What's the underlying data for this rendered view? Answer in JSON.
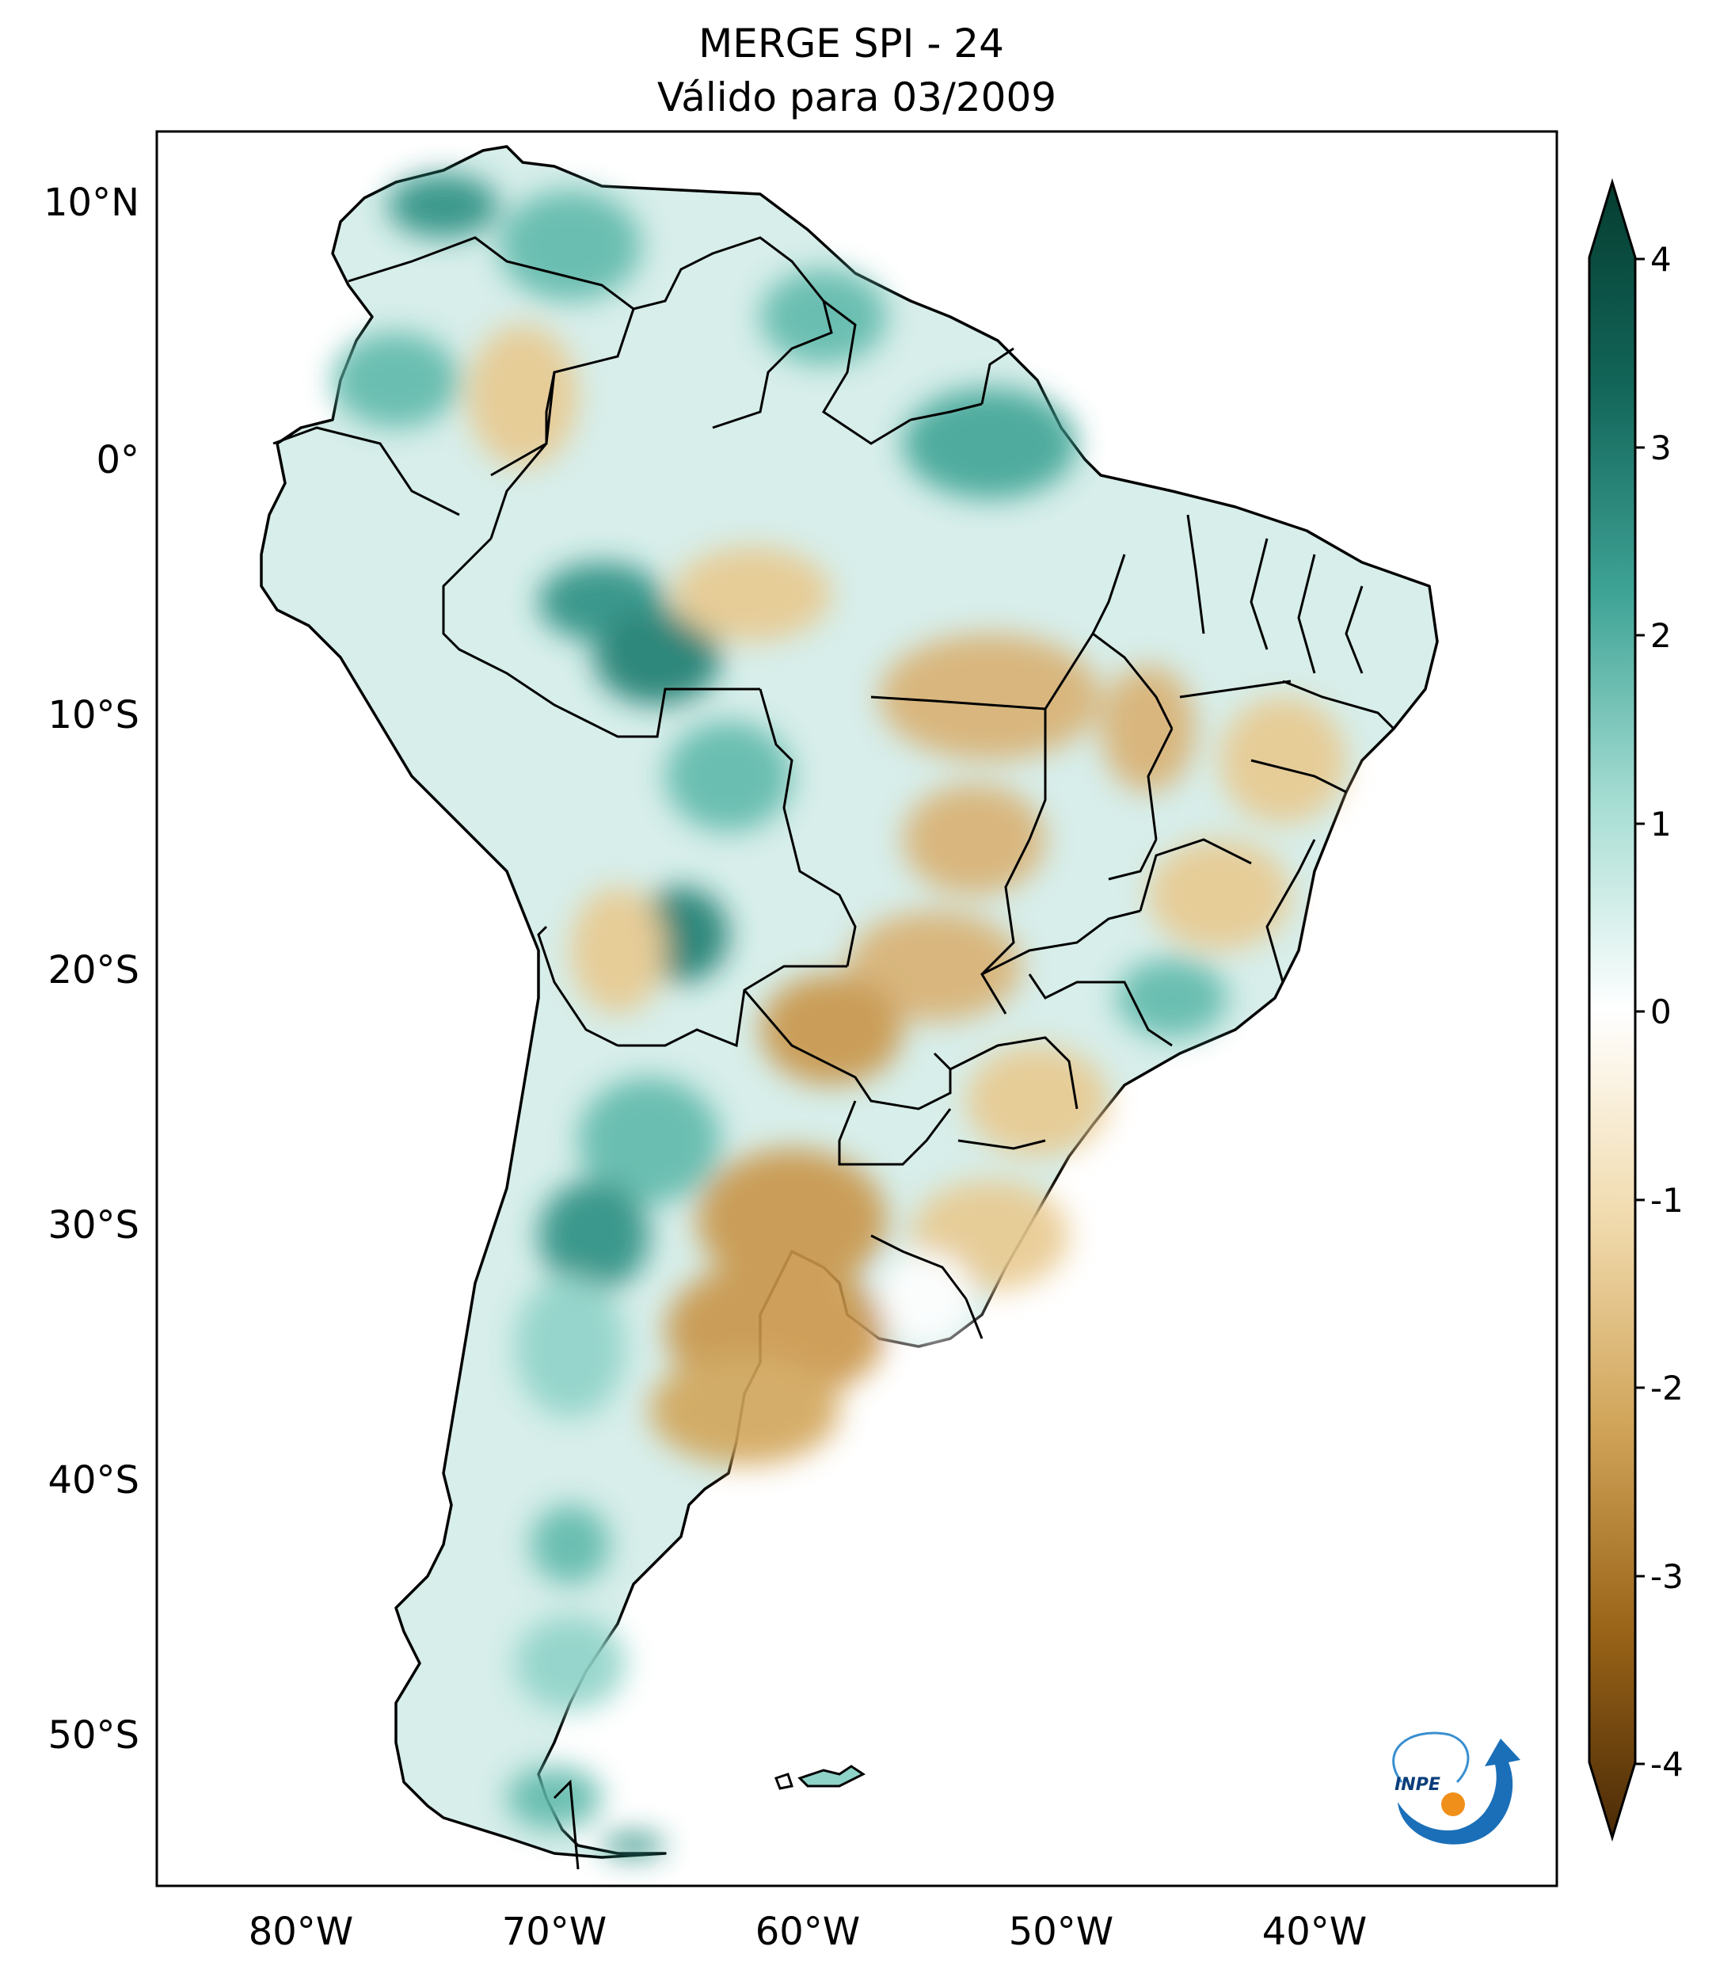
{
  "title": {
    "line1": "MERGE   SPI - 24",
    "line2": "Válido para 03/2009"
  },
  "map": {
    "region": "South America",
    "lat_labels": [
      "10°N",
      "0°",
      "10°S",
      "20°S",
      "30°S",
      "40°S",
      "50°S"
    ],
    "lon_labels": [
      "80°W",
      "70°W",
      "60°W",
      "50°W",
      "40°W"
    ],
    "logo_text": "INPE"
  },
  "colorbar": {
    "ticks": [
      "4",
      "3",
      "2",
      "1",
      "0",
      "-1",
      "-2",
      "-3",
      "-4"
    ],
    "colors": {
      "max": "#053d30",
      "high": "#2a8f82",
      "mid_high": "#8fd3c8",
      "zero": "#ffffff",
      "mid_low": "#e8c98f",
      "low": "#b07a28",
      "min": "#4a2a06"
    }
  }
}
